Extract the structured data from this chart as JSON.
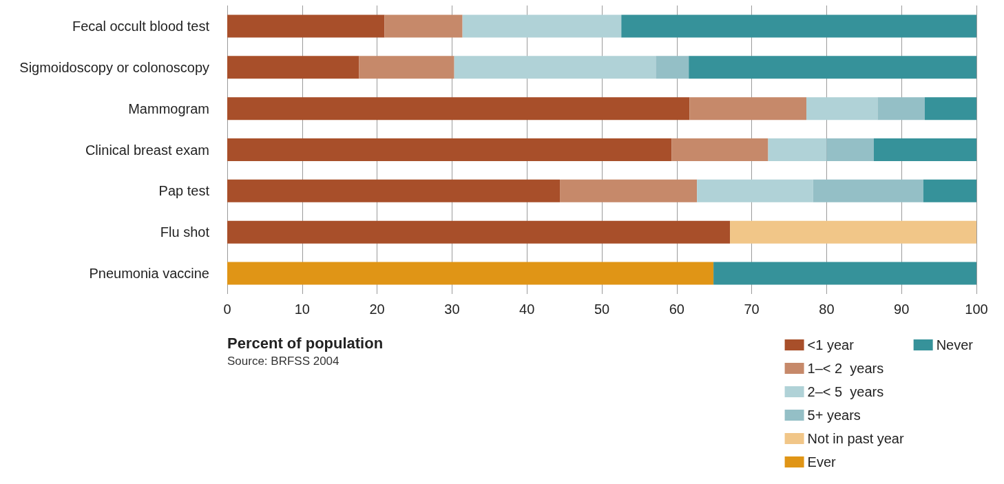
{
  "chart_data": {
    "type": "bar",
    "orientation": "horizontal",
    "stacked": true,
    "xlabel": "Percent of population",
    "annotations": [
      "Source: BRFSS 2004"
    ],
    "categories": [
      "Fecal occult blood test",
      "Sigmoidoscopy or colonoscopy",
      "Mammogram",
      "Clinical breast exam",
      "Pap test",
      "Flu shot",
      "Pneumonia vaccine"
    ],
    "series": [
      {
        "name": "<1 year",
        "color": "#a84f2a",
        "values": [
          21.0,
          17.6,
          61.7,
          59.3,
          44.4,
          67.1,
          null
        ]
      },
      {
        "name": "1–< 2  years",
        "color": "#c6896a",
        "values": [
          10.4,
          12.7,
          15.6,
          12.9,
          18.3,
          null,
          null
        ]
      },
      {
        "name": "2–< 5  years",
        "color": "#b0d2d7",
        "values": [
          21.2,
          26.9,
          9.5,
          7.8,
          15.5,
          null,
          null
        ]
      },
      {
        "name": "5+ years",
        "color": "#94bfc6",
        "values": [
          null,
          4.4,
          6.3,
          6.3,
          14.7,
          null,
          null
        ]
      },
      {
        "name": "Not in past year",
        "color": "#f1c688",
        "values": [
          null,
          null,
          null,
          null,
          null,
          32.9,
          null
        ]
      },
      {
        "name": "Ever",
        "color": "#e09516",
        "values": [
          null,
          null,
          null,
          null,
          null,
          null,
          64.9
        ]
      },
      {
        "name": "Never",
        "color": "#36929a",
        "values": [
          47.4,
          38.4,
          6.9,
          13.7,
          7.1,
          null,
          35.1
        ]
      }
    ],
    "xlim": [
      0,
      100
    ],
    "xticks": [
      0,
      10,
      20,
      30,
      40,
      50,
      60,
      70,
      80,
      90,
      100
    ],
    "grid": "x",
    "legend": "bottom right"
  }
}
